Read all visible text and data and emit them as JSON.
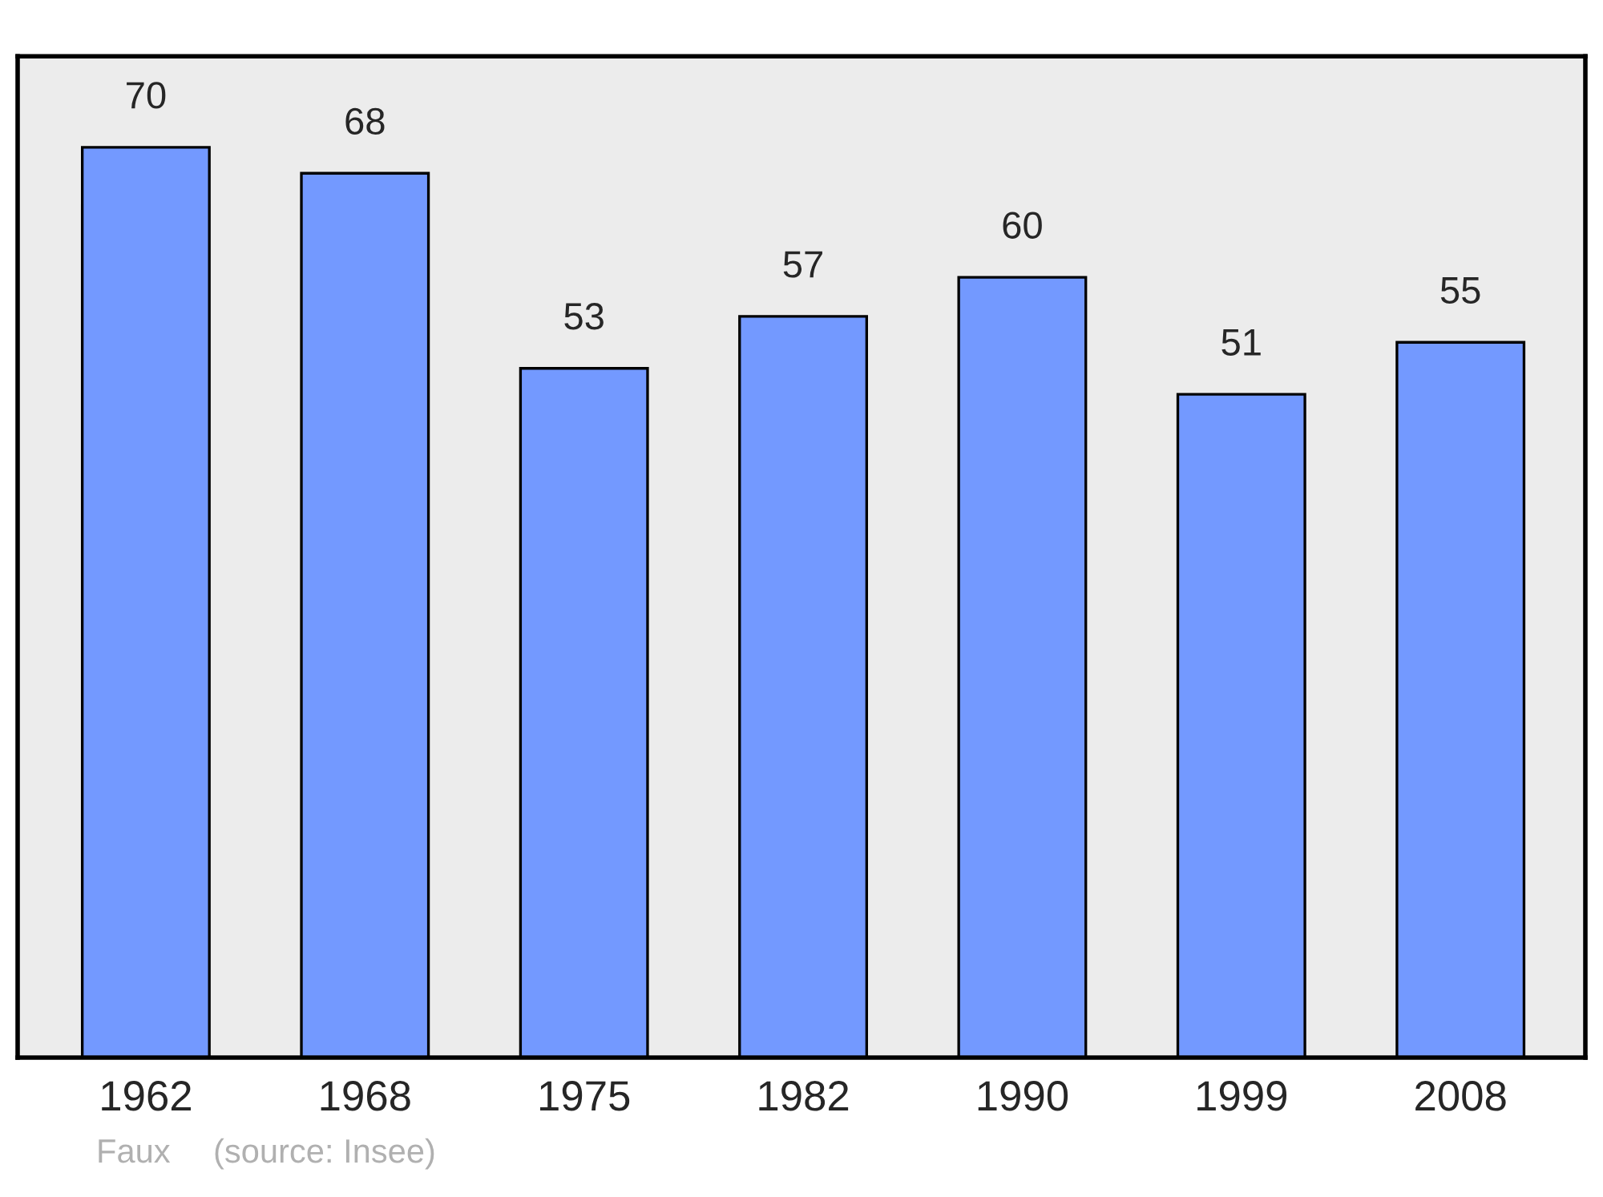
{
  "chart_data": {
    "type": "bar",
    "categories": [
      "1962",
      "1968",
      "1975",
      "1982",
      "1990",
      "1999",
      "2008"
    ],
    "values": [
      70,
      68,
      53,
      57,
      60,
      51,
      55
    ],
    "color": "#7399ff",
    "data_labels": true,
    "grid": false,
    "annotations": [
      "Faux",
      "(source: Insee)"
    ]
  }
}
